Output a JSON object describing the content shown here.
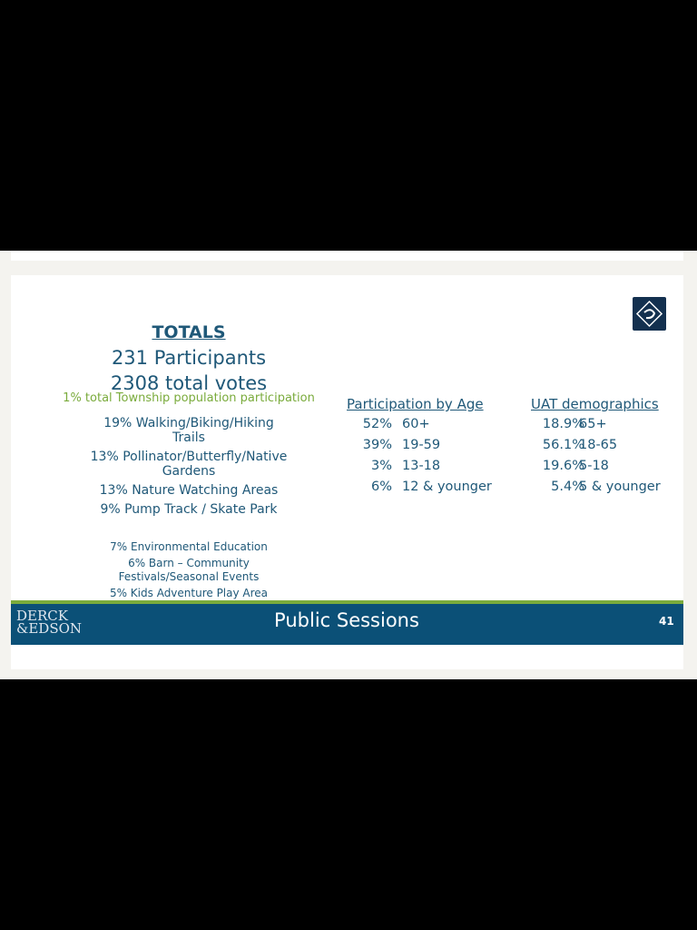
{
  "totals": {
    "heading": "TOTALS",
    "participants": "231 Participants",
    "votes": "2308 total votes",
    "population_note": "1% total Township population participation",
    "items": [
      "19% Walking/Biking/Hiking",
      "Trails",
      "13% Pollinator/Butterfly/Native",
      "Gardens",
      "13% Nature Watching Areas",
      "9% Pump Track / Skate Park"
    ],
    "minor_items": [
      "7% Environmental Education",
      "6%  Barn – Community",
      "Festivals/Seasonal Events",
      "5% Kids Adventure Play Area"
    ]
  },
  "age": {
    "heading": "Participation by Age",
    "rows": [
      {
        "pct": "52%",
        "range": "60+"
      },
      {
        "pct": "39%",
        "range": "19-59"
      },
      {
        "pct": "3%",
        "range": "13-18"
      },
      {
        "pct": "6%",
        "range": "12 & younger"
      }
    ]
  },
  "uat": {
    "heading": "UAT demographics",
    "rows": [
      {
        "pct": "18.9%",
        "range": "65+"
      },
      {
        "pct": "56.1%",
        "range": "18-65"
      },
      {
        "pct": "19.6%",
        "range": "5-18"
      },
      {
        "pct": "5.4%",
        "range": "5 & younger"
      }
    ]
  },
  "footer": {
    "logo": "DERCK & EDSON",
    "logo_line1": "DERCK",
    "logo_line2": "&EDSON",
    "title": "Public Sessions",
    "page": "41"
  },
  "colors": {
    "text": "#1f5878",
    "green": "#7aab3c",
    "footer": "#0b5077"
  }
}
